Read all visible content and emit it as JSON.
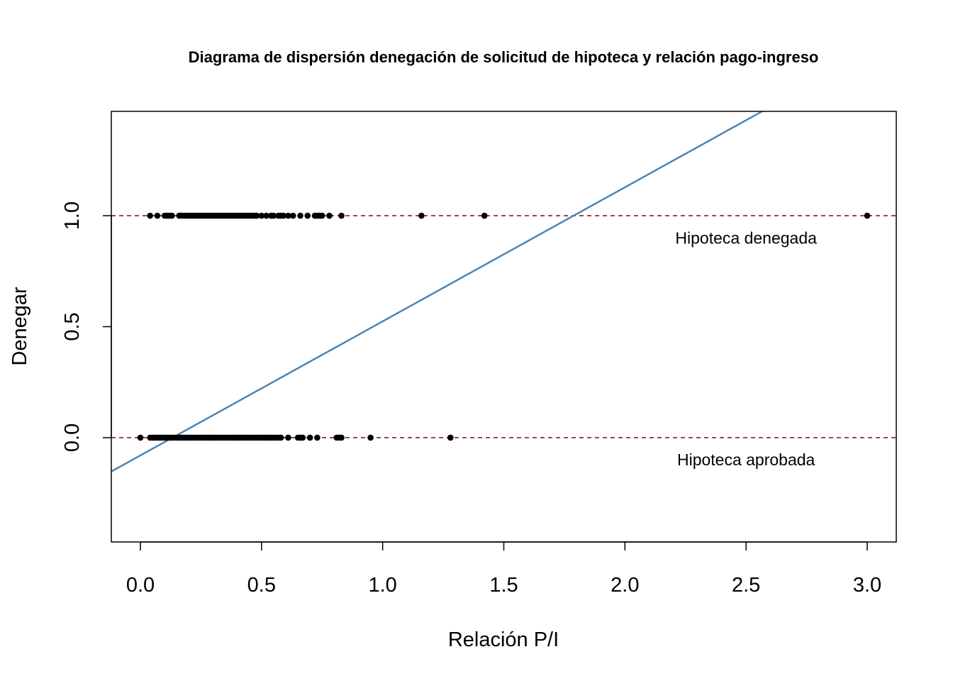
{
  "chart_data": {
    "type": "scatter",
    "title": "Diagrama de dispersión denegación de solicitud de hipoteca y relación pago-ingreso",
    "xlabel": "Relación P/I",
    "ylabel": "Denegar",
    "xlim": [
      -0.12,
      3.12
    ],
    "ylim": [
      -0.47,
      1.47
    ],
    "x_ticks": [
      0.0,
      0.5,
      1.0,
      1.5,
      2.0,
      2.5,
      3.0
    ],
    "x_tick_labels": [
      "0.0",
      "0.5",
      "1.0",
      "1.5",
      "2.0",
      "2.5",
      "3.0"
    ],
    "y_ticks": [
      0.0,
      0.5,
      1.0
    ],
    "y_tick_labels": [
      "0.0",
      "0.5",
      "1.0"
    ],
    "grid": false,
    "reference_lines": [
      {
        "y": 1.0,
        "style": "dashed",
        "color": "#8b1a1a"
      },
      {
        "y": 0.0,
        "style": "dashed",
        "color": "#8b1a1a"
      }
    ],
    "regression_line": {
      "intercept": -0.08,
      "slope": 0.604,
      "color": "#4682b4"
    },
    "annotations": [
      {
        "text": "Hipoteca denegada",
        "x": 2.5,
        "y": 0.9
      },
      {
        "text": "Hipoteca aprobada",
        "x": 2.5,
        "y": -0.1
      }
    ],
    "series": [
      {
        "y": 1,
        "x": [
          0.04,
          0.07,
          0.1,
          0.11,
          0.12,
          0.13,
          0.16,
          0.17,
          0.18,
          0.19,
          0.2,
          0.21,
          0.22,
          0.23,
          0.24,
          0.25,
          0.26,
          0.27,
          0.28,
          0.29,
          0.3,
          0.31,
          0.32,
          0.33,
          0.34,
          0.35,
          0.36,
          0.37,
          0.38,
          0.39,
          0.4,
          0.41,
          0.42,
          0.43,
          0.44,
          0.45,
          0.46,
          0.47,
          0.48,
          0.5,
          0.52,
          0.54,
          0.55,
          0.57,
          0.58,
          0.59,
          0.61,
          0.63,
          0.66,
          0.69,
          0.72,
          0.73,
          0.74,
          0.75,
          0.78,
          0.83,
          1.16,
          1.42,
          3.0
        ]
      },
      {
        "y": 0,
        "x": [
          0.0,
          0.04,
          0.05,
          0.06,
          0.07,
          0.08,
          0.09,
          0.1,
          0.11,
          0.12,
          0.13,
          0.14,
          0.15,
          0.16,
          0.17,
          0.18,
          0.19,
          0.2,
          0.21,
          0.22,
          0.23,
          0.24,
          0.25,
          0.26,
          0.27,
          0.28,
          0.29,
          0.3,
          0.31,
          0.32,
          0.33,
          0.34,
          0.35,
          0.36,
          0.37,
          0.38,
          0.39,
          0.4,
          0.41,
          0.42,
          0.43,
          0.44,
          0.45,
          0.46,
          0.47,
          0.48,
          0.49,
          0.5,
          0.51,
          0.52,
          0.53,
          0.54,
          0.55,
          0.56,
          0.57,
          0.58,
          0.61,
          0.65,
          0.66,
          0.67,
          0.7,
          0.73,
          0.81,
          0.82,
          0.83,
          0.95,
          1.28
        ]
      }
    ]
  }
}
